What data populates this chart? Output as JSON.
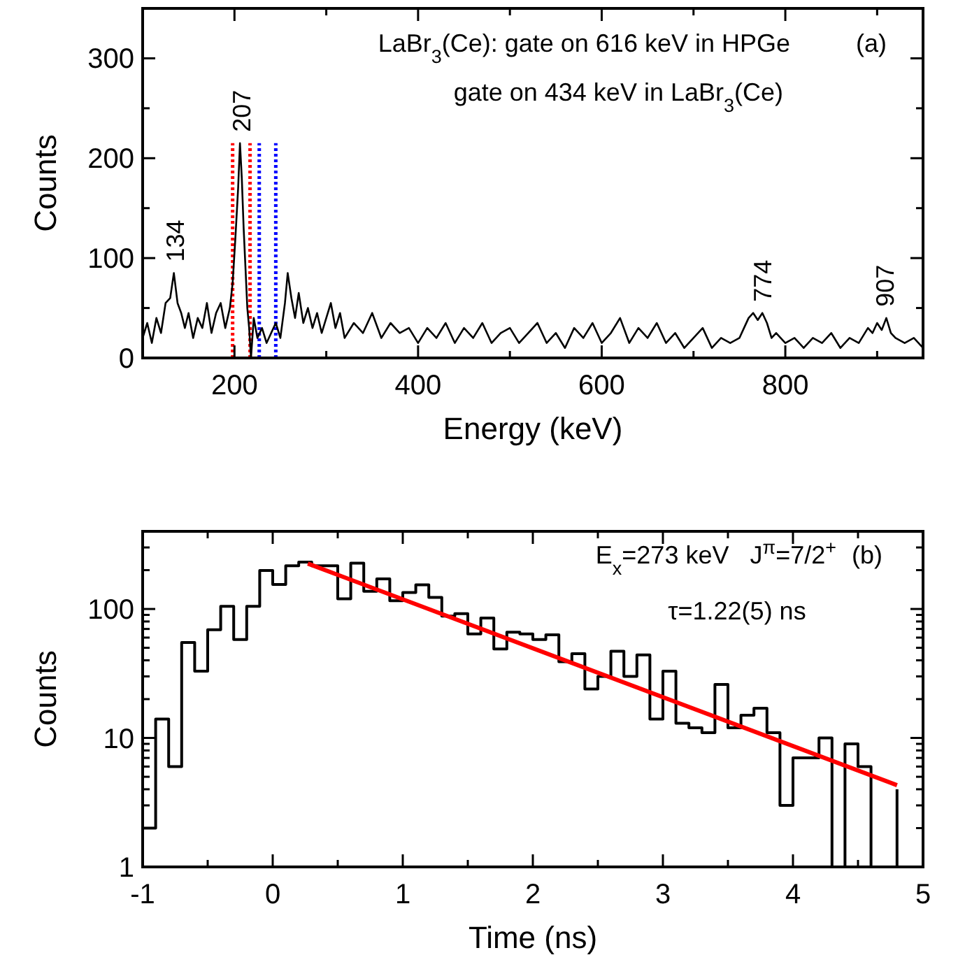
{
  "chart_data": [
    {
      "type": "line",
      "xlabel": "Energy (keV)",
      "ylabel": "Counts",
      "xlim": [
        100,
        950
      ],
      "ylim": [
        0,
        350
      ],
      "xticks": [
        200,
        {
          "value": 300,
          "label": null
        },
        400,
        {
          "value": 500,
          "label": null
        },
        600,
        {
          "value": 700,
          "label": null
        },
        800,
        {
          "value": 900,
          "label": null
        }
      ],
      "yticks": [
        0,
        {
          "value": 50,
          "label": null
        },
        100,
        {
          "value": 150,
          "label": null
        },
        200,
        {
          "value": 250,
          "label": null
        },
        300
      ],
      "series": [
        {
          "color": "#000000",
          "x": [
            100,
            105,
            110,
            115,
            120,
            125,
            130,
            134,
            138,
            142,
            146,
            150,
            155,
            160,
            165,
            170,
            175,
            180,
            185,
            190,
            195,
            198,
            201,
            204,
            206,
            208,
            210,
            212,
            214,
            216,
            218,
            221,
            225,
            230,
            235,
            240,
            245,
            250,
            255,
            258,
            262,
            266,
            270,
            275,
            280,
            285,
            290,
            295,
            300,
            305,
            310,
            315,
            320,
            330,
            340,
            350,
            360,
            370,
            380,
            390,
            400,
            410,
            420,
            430,
            440,
            450,
            460,
            470,
            480,
            490,
            500,
            510,
            520,
            530,
            540,
            550,
            560,
            570,
            580,
            590,
            600,
            610,
            620,
            630,
            640,
            650,
            660,
            670,
            680,
            690,
            700,
            710,
            720,
            730,
            740,
            750,
            755,
            760,
            765,
            770,
            775,
            780,
            785,
            790,
            800,
            810,
            820,
            830,
            840,
            850,
            860,
            870,
            880,
            890,
            895,
            900,
            905,
            910,
            915,
            920,
            930,
            940,
            950
          ],
          "values": [
            20,
            35,
            15,
            40,
            25,
            55,
            60,
            85,
            55,
            45,
            30,
            45,
            20,
            40,
            30,
            55,
            25,
            45,
            55,
            30,
            50,
            75,
            120,
            170,
            215,
            180,
            130,
            90,
            50,
            30,
            0,
            40,
            20,
            30,
            15,
            25,
            35,
            20,
            55,
            85,
            60,
            40,
            65,
            35,
            50,
            30,
            45,
            25,
            40,
            55,
            30,
            45,
            20,
            35,
            25,
            45,
            20,
            35,
            25,
            30,
            15,
            30,
            20,
            35,
            15,
            30,
            20,
            35,
            15,
            25,
            30,
            15,
            25,
            35,
            15,
            25,
            10,
            30,
            20,
            35,
            15,
            25,
            40,
            15,
            30,
            20,
            35,
            15,
            25,
            10,
            20,
            30,
            10,
            20,
            15,
            20,
            30,
            40,
            45,
            38,
            45,
            35,
            20,
            25,
            15,
            20,
            10,
            20,
            15,
            25,
            10,
            20,
            15,
            30,
            25,
            35,
            28,
            40,
            25,
            20,
            15,
            20,
            10
          ]
        }
      ],
      "ref_lines": [
        {
          "axis": "x",
          "value": 198,
          "color": "#ff0000",
          "line_style": "dotted"
        },
        {
          "axis": "x",
          "value": 217,
          "color": "#ff0000",
          "line_style": "dotted"
        },
        {
          "axis": "x",
          "value": 227,
          "color": "#0000ff",
          "line_style": "dotted"
        },
        {
          "axis": "x",
          "value": 245,
          "color": "#0000ff",
          "line_style": "dotted"
        }
      ],
      "annotations": [
        "LaBr$_{3}$(Ce): gate on 616 keV in HPGe",
        "gate on 434 keV in LaBr$_{3}$(Ce)",
        "(a)",
        {
          "text": "134",
          "x": 134,
          "y": 85
        },
        {
          "text": "207",
          "x": 207,
          "y": 215
        },
        {
          "text": "774",
          "x": 774,
          "y": 45
        },
        {
          "text": "907",
          "x": 907,
          "y": 40
        }
      ]
    },
    {
      "type": "step",
      "xlabel": "Time (ns)",
      "ylabel": "Counts",
      "log": "y",
      "xlim": [
        -1,
        5
      ],
      "ylim": [
        1,
        400
      ],
      "xticks": [
        -1,
        {
          "value": -0.5,
          "label": null
        },
        0,
        {
          "value": 0.5,
          "label": null
        },
        1,
        {
          "value": 1.5,
          "label": null
        },
        2,
        {
          "value": 2.5,
          "label": null
        },
        3,
        {
          "value": 3.5,
          "label": null
        },
        4,
        {
          "value": 4.5,
          "label": null
        },
        5
      ],
      "yticks": [
        1,
        {
          "value": 2,
          "label": null
        },
        {
          "value": 3,
          "label": null
        },
        {
          "value": 4,
          "label": null
        },
        {
          "value": 5,
          "label": null
        },
        {
          "value": 6,
          "label": null
        },
        {
          "value": 7,
          "label": null
        },
        {
          "value": 8,
          "label": null
        },
        {
          "value": 9,
          "label": null
        },
        10,
        {
          "value": 20,
          "label": null
        },
        {
          "value": 30,
          "label": null
        },
        {
          "value": 40,
          "label": null
        },
        {
          "value": 50,
          "label": null
        },
        {
          "value": 60,
          "label": null
        },
        {
          "value": 70,
          "label": null
        },
        {
          "value": 80,
          "label": null
        },
        {
          "value": 90,
          "label": null
        },
        100,
        {
          "value": 200,
          "label": null
        },
        {
          "value": 300,
          "label": null
        }
      ],
      "series": [
        {
          "type": "step",
          "color": "#000000",
          "x": [
            -1.0,
            -0.9,
            -0.8,
            -0.7,
            -0.6,
            -0.5,
            -0.4,
            -0.3,
            -0.2,
            -0.1,
            0.0,
            0.1,
            0.2,
            0.3,
            0.4,
            0.5,
            0.6,
            0.7,
            0.8,
            0.9,
            1.0,
            1.1,
            1.2,
            1.3,
            1.4,
            1.5,
            1.6,
            1.7,
            1.8,
            1.9,
            2.0,
            2.1,
            2.2,
            2.3,
            2.4,
            2.5,
            2.6,
            2.7,
            2.8,
            2.9,
            3.0,
            3.1,
            3.2,
            3.3,
            3.4,
            3.5,
            3.6,
            3.7,
            3.8,
            3.9,
            4.0,
            4.1,
            4.2,
            4.3,
            4.4,
            4.5,
            4.6,
            4.7,
            4.8
          ],
          "values": [
            2,
            14,
            6,
            55,
            33,
            69,
            105,
            58,
            105,
            199,
            155,
            216,
            231,
            216,
            216,
            120,
            227,
            137,
            171,
            116,
            134,
            154,
            123,
            88,
            92,
            64,
            85,
            49,
            66,
            64,
            58,
            63,
            39,
            45,
            24,
            30,
            47,
            30,
            44,
            14,
            33,
            13,
            12,
            11,
            26,
            12,
            15,
            17,
            11,
            3,
            7,
            7,
            10,
            1,
            9,
            6,
            1,
            1,
            4
          ]
        },
        {
          "type": "line",
          "color": "#ff0000",
          "x": [
            0.27,
            4.8
          ],
          "values": [
            225,
            4.3
          ]
        }
      ],
      "annotations": [
        "E$_{x}$=273 keV   J$^{π}$=7/2$^{+}$",
        "(b)",
        "τ=1.22(5) ns"
      ]
    }
  ]
}
